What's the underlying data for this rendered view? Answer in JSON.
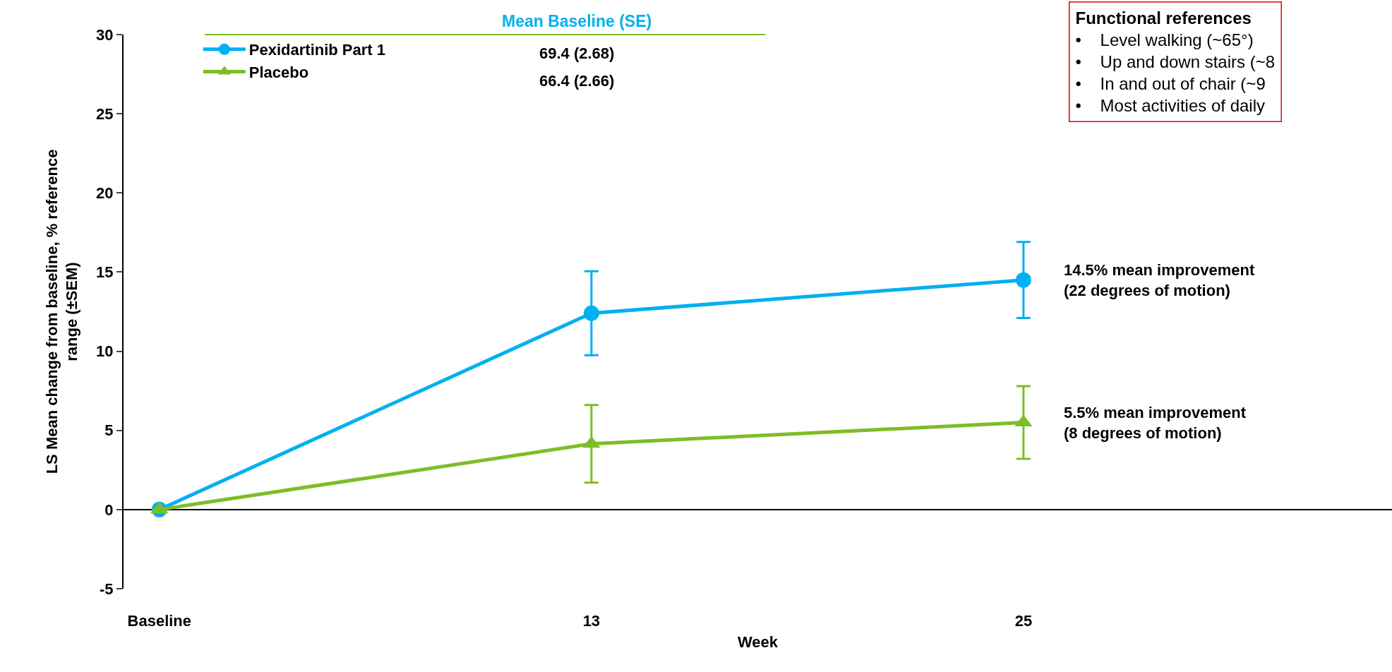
{
  "chart_data": {
    "type": "line",
    "xlabel": "Week",
    "ylabel": "LS Mean change from baseline, % reference\nrange (±SEM)",
    "categories": [
      "Baseline",
      "13",
      "25"
    ],
    "series": [
      {
        "name": "Pexidartinib Part 1",
        "color": "#00b0f0",
        "marker": "circle",
        "values": [
          0,
          12.4,
          14.5
        ],
        "errors": [
          null,
          2.65,
          2.4
        ]
      },
      {
        "name": "Placebo",
        "color": "#7fbc27",
        "marker": "triangle",
        "values": [
          0,
          4.15,
          5.5
        ],
        "errors": [
          null,
          2.45,
          2.3
        ]
      }
    ],
    "ylim": [
      -5,
      30
    ],
    "yticks": [
      -5,
      0,
      5,
      10,
      15,
      20,
      25,
      30
    ],
    "legend": "top left",
    "line_style": "solid",
    "annotations": [
      "Mean Baseline (SE)",
      "69.4 (2.68)",
      "66.4 (2.66)",
      {
        "text": "14.5% mean improvement\n(22 degrees of motion)",
        "x": "25",
        "y": 14.5
      },
      {
        "text": "5.5% mean improvement\n(8 degrees of motion)",
        "x": "25",
        "y": 5.5
      },
      "Functional references\n•    Level walking (~65°)\n•    Up and down stairs (~8\n•    In and out of chair (~9\n•    Most activities of daily"
    ]
  }
}
